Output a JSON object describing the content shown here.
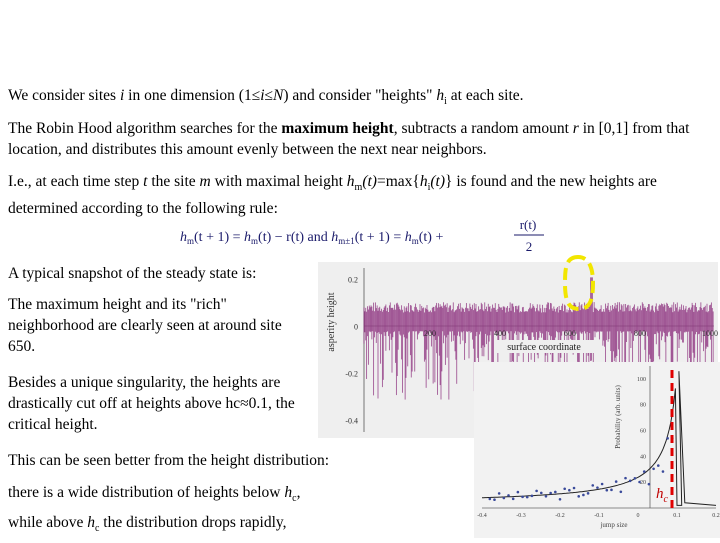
{
  "p1": {
    "a": "We consider sites ",
    "i": "i",
    "b": " in one dimension (1≤",
    "i2": "i",
    "c": "≤",
    "N": "N",
    "d": ") and consider \"heights\" ",
    "h": "h",
    "sub": "i",
    "e": " at each site."
  },
  "p2": {
    "a": "The Robin Hood algorithm searches for the ",
    "bold": "maximum height",
    "b": ", subtracts a random amount ",
    "r": "r",
    "c": " in [0,1] from that location, and distributes this amount evenly between the next near neighbors."
  },
  "p3": {
    "a": "I.e., at each time step ",
    "t": "t",
    "b": " the site ",
    "m": "m",
    "c": " with maximal height ",
    "hm": "h",
    "hmsub": "m",
    "hmt": "(t)",
    "d": "=max{",
    "hi": "h",
    "hisub": "i",
    "hit": "(t)",
    "e": "} is found and the new heights are determined according to the following rule:"
  },
  "equation": {
    "lhs1": "h",
    "lhs1sub": "m",
    "lhs1arg": "(t + 1) = ",
    "rhs1": "h",
    "rhs1sub": "m",
    "rhs1arg": "(t) − r(t)",
    "and": " and ",
    "lhs2": "h",
    "lhs2sub": "m±1",
    "lhs2arg": "(t + 1) = ",
    "rhs2": "h",
    "rhs2sub": "m",
    "rhs2arg": "(t) + ",
    "num": "r(t)",
    "den": "2"
  },
  "p4": "A typical snapshot of the steady state is:",
  "p5": "The maximum height and its \"rich\" neighborhood are clearly seen at around site 650.",
  "p6": "Besides a unique singularity, the heights are drastically cut off at heights above hc≈0.1, the critical height.",
  "p7": "This can be seen better from the height distribution:",
  "p8": {
    "a": "there is a wide distribution of heights below ",
    "h": "h",
    "sub": "c",
    "b": ","
  },
  "p9": {
    "a": "while above ",
    "h": "h",
    "sub": "c",
    "b": " the distribution drops rapidly,"
  },
  "chart_data": [
    {
      "type": "bar",
      "ylabel": "asperity height",
      "xlabel": "surface coordinate",
      "yticks": [
        "0.2",
        "0",
        "-0.2",
        "-0.4"
      ],
      "xticks": [
        "200",
        "400",
        "600",
        "800",
        "1000"
      ],
      "ylim": [
        -0.45,
        0.25
      ],
      "xlim": [
        0,
        1000
      ],
      "peak_site": 650,
      "critical_height": 0.1,
      "colors": {
        "bars": "#8a2a7a",
        "marker": "#f2e600"
      }
    },
    {
      "type": "scatter",
      "ylabel": "Probability (arb. units)",
      "xlabel": "jump size",
      "xticks": [
        "-0.4",
        "-0.3",
        "-0.2",
        "-0.1",
        "0",
        "0.1",
        "0.2"
      ],
      "yticks": [
        "20",
        "40",
        "60",
        "80",
        "100"
      ],
      "xlim": [
        -0.4,
        0.2
      ],
      "ylim": [
        0,
        110
      ],
      "critical_label": {
        "h": "h",
        "sub": "c"
      },
      "colors": {
        "points": "#3a4a9a",
        "fit": "#222222",
        "marker": "#e00000"
      }
    }
  ]
}
